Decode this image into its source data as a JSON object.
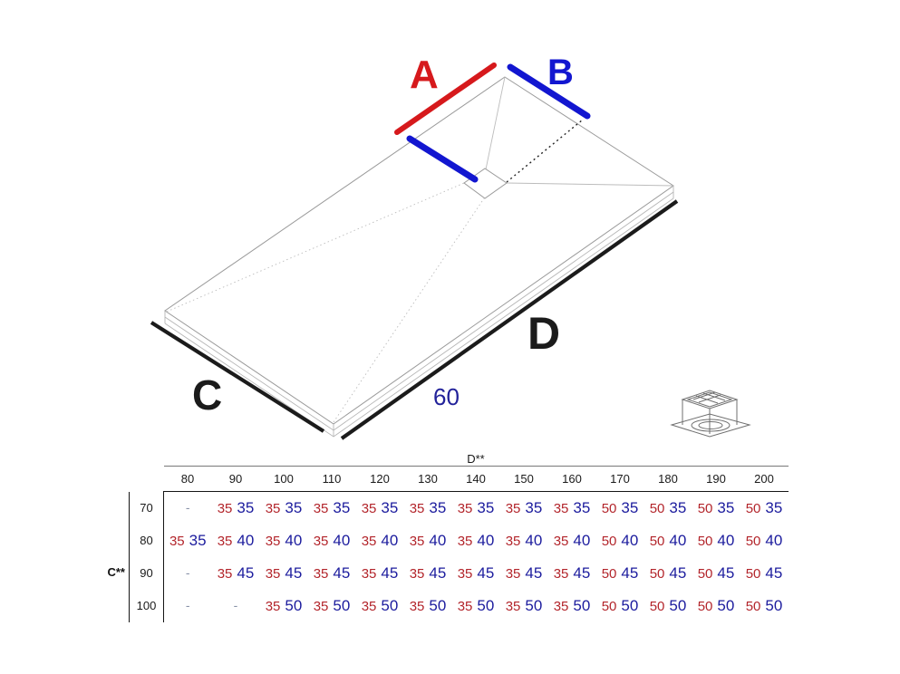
{
  "colors": {
    "diagram_red": "#d6191c",
    "diagram_blue": "#1216d0",
    "table_red": "#b3252b",
    "table_blue": "#1c1c9e",
    "muted_dash": "#8892a8",
    "edge_gray": "#9a9a9a",
    "ink": "#1a1a1a"
  },
  "icons": {
    "drain": "drain-assembly-line-drawing"
  },
  "diagram": {
    "labels": {
      "a": "A",
      "b": "B",
      "c": "C",
      "d": "D",
      "drain_offset": "60"
    }
  },
  "table": {
    "col_group_label": "D**",
    "row_group_label": "C**",
    "empty_cell": "-",
    "columns": [
      "80",
      "90",
      "100",
      "110",
      "120",
      "130",
      "140",
      "150",
      "160",
      "170",
      "180",
      "190",
      "200"
    ],
    "rows": [
      {
        "label": "70",
        "cells": [
          null,
          [
            "35",
            "35"
          ],
          [
            "35",
            "35"
          ],
          [
            "35",
            "35"
          ],
          [
            "35",
            "35"
          ],
          [
            "35",
            "35"
          ],
          [
            "35",
            "35"
          ],
          [
            "35",
            "35"
          ],
          [
            "35",
            "35"
          ],
          [
            "50",
            "35"
          ],
          [
            "50",
            "35"
          ],
          [
            "50",
            "35"
          ],
          [
            "50",
            "35"
          ]
        ]
      },
      {
        "label": "80",
        "cells": [
          [
            "35",
            "35"
          ],
          [
            "35",
            "40"
          ],
          [
            "35",
            "40"
          ],
          [
            "35",
            "40"
          ],
          [
            "35",
            "40"
          ],
          [
            "35",
            "40"
          ],
          [
            "35",
            "40"
          ],
          [
            "35",
            "40"
          ],
          [
            "35",
            "40"
          ],
          [
            "50",
            "40"
          ],
          [
            "50",
            "40"
          ],
          [
            "50",
            "40"
          ],
          [
            "50",
            "40"
          ]
        ]
      },
      {
        "label": "90",
        "cells": [
          null,
          [
            "35",
            "45"
          ],
          [
            "35",
            "45"
          ],
          [
            "35",
            "45"
          ],
          [
            "35",
            "45"
          ],
          [
            "35",
            "45"
          ],
          [
            "35",
            "45"
          ],
          [
            "35",
            "45"
          ],
          [
            "35",
            "45"
          ],
          [
            "50",
            "45"
          ],
          [
            "50",
            "45"
          ],
          [
            "50",
            "45"
          ],
          [
            "50",
            "45"
          ]
        ]
      },
      {
        "label": "100",
        "cells": [
          null,
          null,
          [
            "35",
            "50"
          ],
          [
            "35",
            "50"
          ],
          [
            "35",
            "50"
          ],
          [
            "35",
            "50"
          ],
          [
            "35",
            "50"
          ],
          [
            "35",
            "50"
          ],
          [
            "35",
            "50"
          ],
          [
            "50",
            "50"
          ],
          [
            "50",
            "50"
          ],
          [
            "50",
            "50"
          ],
          [
            "50",
            "50"
          ]
        ]
      }
    ]
  }
}
